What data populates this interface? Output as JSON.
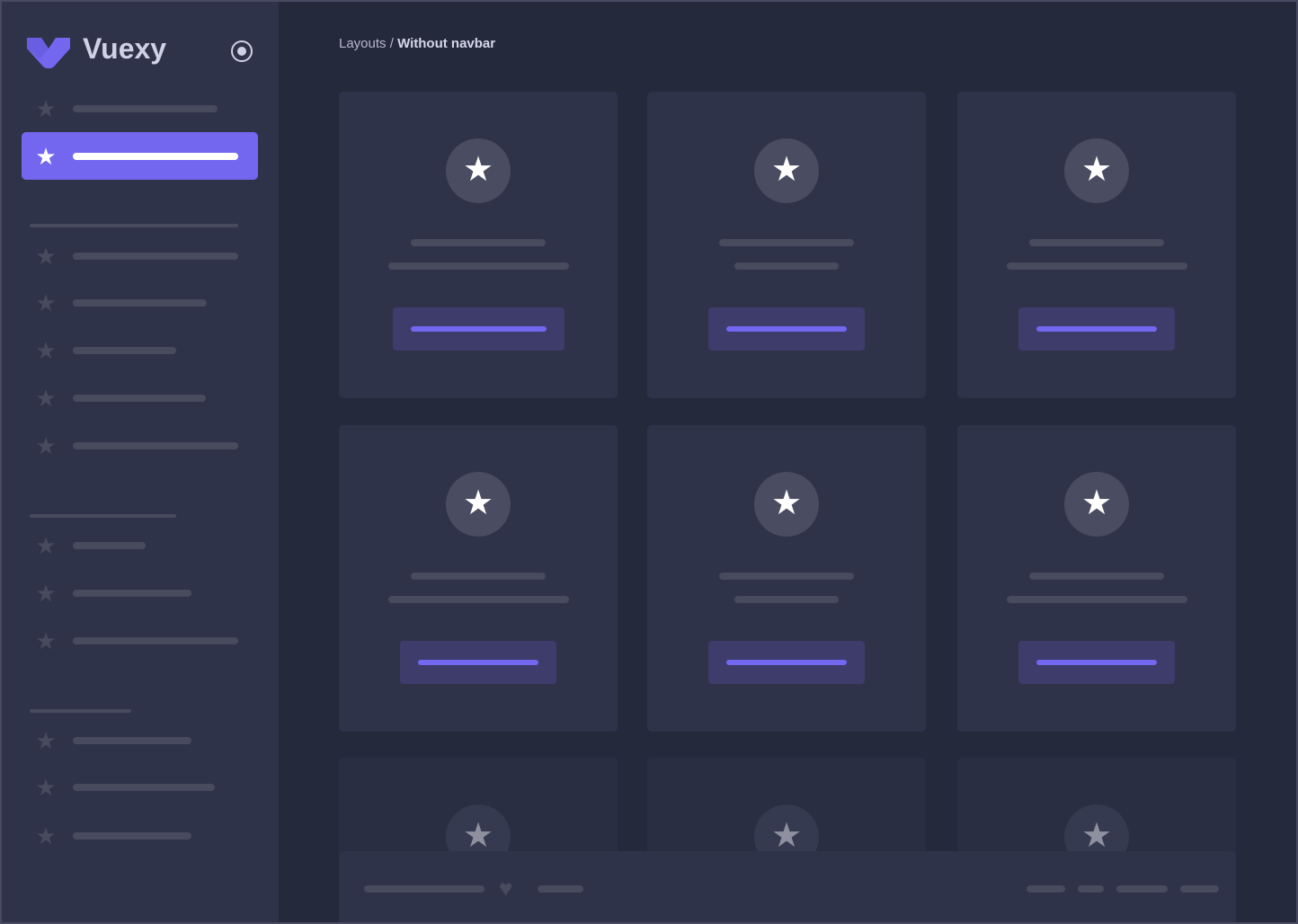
{
  "brand": {
    "name": "Vuexy",
    "accent": "#7367f0"
  },
  "breadcrumb": {
    "parent": "Layouts",
    "separator": " / ",
    "current": "Without navbar"
  },
  "sidebar": {
    "toggle_icon": "radio-circle-icon",
    "item_icon": "star-icon",
    "active_index": 1
  },
  "footer": {
    "icon": "heart-icon"
  },
  "colors": {
    "sidebar": "#2f3349",
    "background": "#25293c",
    "card": "#2f3349",
    "skeleton": "#484a5e"
  }
}
